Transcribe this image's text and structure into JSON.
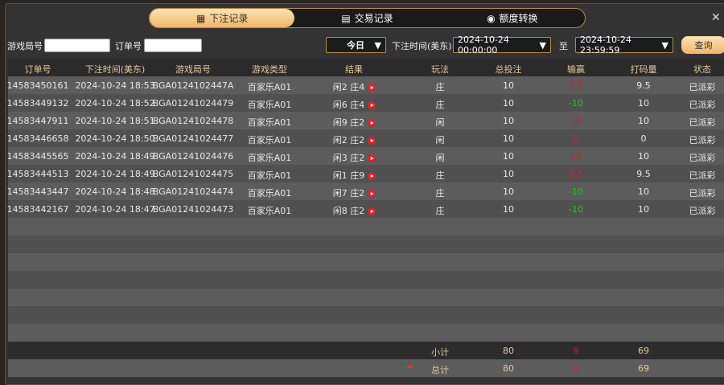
{
  "tabs": [
    {
      "label": "下注记录",
      "icon": "calendar-icon",
      "active": true
    },
    {
      "label": "交易记录",
      "icon": "clipboard-icon"
    },
    {
      "label": "额度转换",
      "icon": "coins-icon"
    }
  ],
  "filters": {
    "game_round_label": "游戏局号",
    "game_round_value": "",
    "order_label": "订单号",
    "order_value": "",
    "range_value": "今日",
    "time_label": "下注时间(美东)",
    "start": "2024-10-24 00:00:00",
    "to_label": "至",
    "end": "2024-10-24 23:59:59",
    "query_label": "查询"
  },
  "columns": [
    "订单号",
    "下注时间(美东)",
    "游戏局号",
    "游戏类型",
    "结果",
    "玩法",
    "总投注",
    "输赢",
    "打码量",
    "状态"
  ],
  "rows": [
    [
      "14583450161",
      "2024-10-24 18:53",
      "BGA0124102447A",
      "百家乐A01",
      "闲2 庄4",
      "庄",
      "10",
      "9.5",
      "9.5",
      "已派彩"
    ],
    [
      "14583449132",
      "2024-10-24 18:52",
      "BGA01241024479",
      "百家乐A01",
      "闲6 庄4",
      "庄",
      "10",
      "-10",
      "10",
      "已派彩"
    ],
    [
      "14583447911",
      "2024-10-24 18:51",
      "BGA01241024478",
      "百家乐A01",
      "闲9 庄2",
      "闲",
      "10",
      "10",
      "10",
      "已派彩"
    ],
    [
      "14583446658",
      "2024-10-24 18:50",
      "BGA01241024477",
      "百家乐A01",
      "闲2 庄2",
      "闲",
      "10",
      "0",
      "0",
      "已派彩"
    ],
    [
      "14583445565",
      "2024-10-24 18:49",
      "BGA01241024476",
      "百家乐A01",
      "闲3 庄2",
      "闲",
      "10",
      "10",
      "10",
      "已派彩"
    ],
    [
      "14583444513",
      "2024-10-24 18:49",
      "BGA01241024475",
      "百家乐A01",
      "闲1 庄9",
      "庄",
      "10",
      "9.5",
      "9.5",
      "已派彩"
    ],
    [
      "14583443447",
      "2024-10-24 18:48",
      "BGA01241024474",
      "百家乐A01",
      "闲7 庄2",
      "庄",
      "10",
      "-10",
      "10",
      "已派彩"
    ],
    [
      "14583442167",
      "2024-10-24 18:47",
      "BGA01241024473",
      "百家乐A01",
      "闲8 庄2",
      "庄",
      "10",
      "-10",
      "10",
      "已派彩"
    ]
  ],
  "subtotal": {
    "label": "小计",
    "bet": "80",
    "winloss": "9",
    "turnover": "69"
  },
  "total": {
    "label": "总计",
    "bet": "80",
    "winloss": "9",
    "turnover": "69"
  },
  "colors": {
    "accent": "#f0b567",
    "win": "#c0282a",
    "loss": "#2ec22e"
  }
}
